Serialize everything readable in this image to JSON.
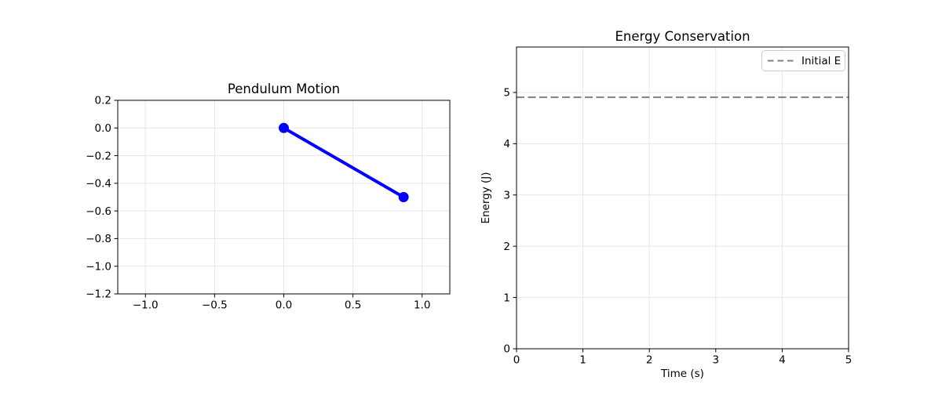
{
  "figure": {
    "background": "#ffffff"
  },
  "chart_data": [
    {
      "type": "line",
      "title": "Pendulum Motion",
      "xlabel": "",
      "ylabel": "",
      "xlim": [
        -1.2,
        1.2
      ],
      "ylim": [
        -1.2,
        0.2
      ],
      "xticks": [
        -1.0,
        -0.5,
        0.0,
        0.5,
        1.0
      ],
      "xtick_labels": [
        "−1.0",
        "−0.5",
        "0.0",
        "0.5",
        "1.0"
      ],
      "yticks": [
        0.2,
        0.0,
        -0.2,
        -0.4,
        -0.6,
        -0.8,
        -1.0,
        -1.2
      ],
      "ytick_labels": [
        "0.2",
        "0.0",
        "−0.2",
        "−0.4",
        "−0.6",
        "−0.8",
        "−1.0",
        "−1.2"
      ],
      "grid": true,
      "series": [
        {
          "name": "pendulum-rod",
          "x": [
            0.0,
            0.866
          ],
          "y": [
            0.0,
            -0.5
          ],
          "color": "#0000ff",
          "linewidth": 4,
          "linestyle": "solid",
          "marker": "circle",
          "markersize": 13
        }
      ]
    },
    {
      "type": "line",
      "title": "Energy Conservation",
      "xlabel": "Time (s)",
      "ylabel": "Energy (J)",
      "xlim": [
        0,
        5
      ],
      "ylim": [
        0,
        5.886
      ],
      "xticks": [
        0,
        1,
        2,
        3,
        4,
        5
      ],
      "xtick_labels": [
        "0",
        "1",
        "2",
        "3",
        "4",
        "5"
      ],
      "yticks": [
        0,
        1,
        2,
        3,
        4,
        5
      ],
      "ytick_labels": [
        "0",
        "1",
        "2",
        "3",
        "4",
        "5"
      ],
      "grid": true,
      "series": [
        {
          "name": "initial-energy",
          "label": "Initial E",
          "x": [
            0,
            5
          ],
          "y": [
            4.905,
            4.905
          ],
          "color": "#808080",
          "linewidth": 2,
          "linestyle": "dashed"
        }
      ],
      "legend": {
        "position": "upper right",
        "entries": [
          {
            "label": "Initial E",
            "color": "#808080",
            "linestyle": "dashed"
          }
        ]
      }
    }
  ]
}
